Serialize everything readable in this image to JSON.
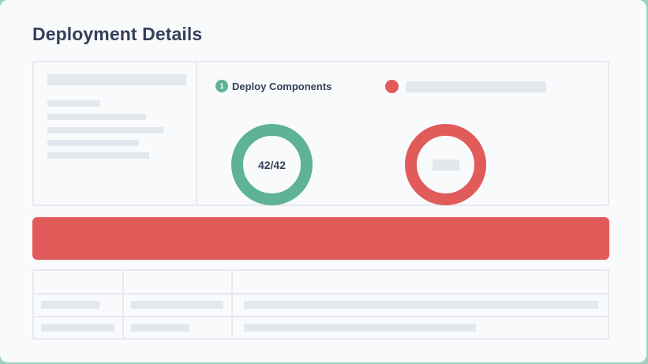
{
  "header": {
    "title": "Deployment Details"
  },
  "deploy_components": {
    "step_number": "1",
    "label": "Deploy Components",
    "progress_text": "42/42",
    "status_color": "#5db393"
  },
  "second_section": {
    "status_color": "#e15b5b"
  },
  "banner": {
    "color": "#e15b5b"
  },
  "colors": {
    "success": "#5db393",
    "error": "#e15b5b",
    "text": "#34405a",
    "placeholder": "#e3e8ef",
    "border": "#e6e9ee"
  }
}
